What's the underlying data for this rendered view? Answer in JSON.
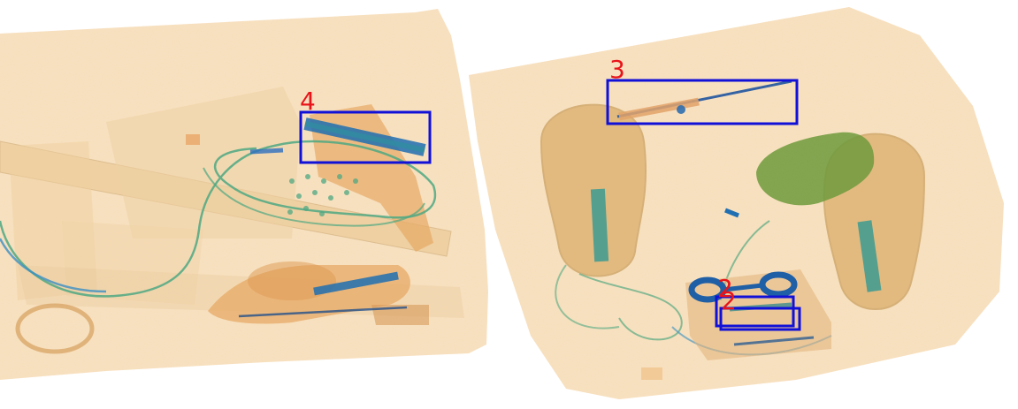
{
  "image": {
    "kind": "x-ray baggage scan",
    "background": "#ffffff",
    "colors": {
      "organic": "#e9b67a",
      "organic_dark": "#d7904a",
      "inorganic": "#5aa88a",
      "metal": "#1f6fb2",
      "box_stroke": "#1010d8",
      "label_text": "#e8141a"
    }
  },
  "detections": [
    {
      "label": "4"
    },
    {
      "label": "3"
    },
    {
      "label": "2"
    },
    {
      "label": "2"
    }
  ]
}
